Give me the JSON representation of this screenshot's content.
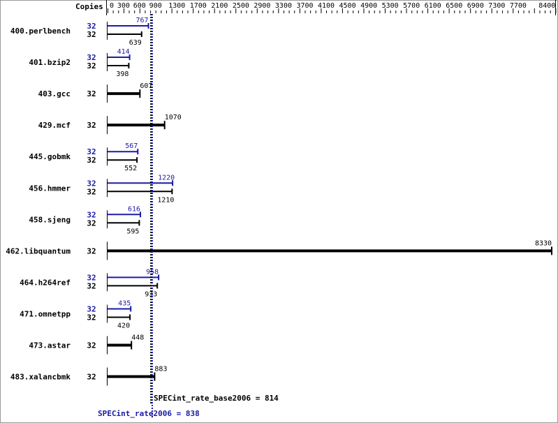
{
  "chart_data": {
    "type": "bar",
    "orientation": "horizontal",
    "copies_header": "Copies",
    "xlim": [
      0,
      8400
    ],
    "tick_labels": [
      0,
      300,
      600,
      900,
      1300,
      1700,
      2100,
      2500,
      2900,
      3300,
      3700,
      4100,
      4500,
      4900,
      5300,
      5700,
      6100,
      6500,
      6900,
      7300,
      7700,
      8400
    ],
    "colors": {
      "peak": "#1a1aa6",
      "base": "#000000"
    },
    "benchmarks": [
      {
        "name": "400.perlbench",
        "peak_copies": "32",
        "base_copies": "32",
        "peak": 767,
        "base": 639
      },
      {
        "name": "401.bzip2",
        "peak_copies": "32",
        "base_copies": "32",
        "peak": 414,
        "base": 398
      },
      {
        "name": "403.gcc",
        "base_copies": "32",
        "base": 607
      },
      {
        "name": "429.mcf",
        "base_copies": "32",
        "base": 1070
      },
      {
        "name": "445.gobmk",
        "peak_copies": "32",
        "base_copies": "32",
        "peak": 567,
        "base": 552
      },
      {
        "name": "456.hmmer",
        "peak_copies": "32",
        "base_copies": "32",
        "peak": 1220,
        "base": 1210
      },
      {
        "name": "458.sjeng",
        "peak_copies": "32",
        "base_copies": "32",
        "peak": 616,
        "base": 595
      },
      {
        "name": "462.libquantum",
        "base_copies": "32",
        "base": 8330
      },
      {
        "name": "464.h264ref",
        "peak_copies": "32",
        "base_copies": "32",
        "peak": 958,
        "base": 933
      },
      {
        "name": "471.omnetpp",
        "peak_copies": "32",
        "base_copies": "32",
        "peak": 435,
        "base": 420
      },
      {
        "name": "473.astar",
        "base_copies": "32",
        "base": 448
      },
      {
        "name": "483.xalancbmk",
        "base_copies": "32",
        "base": 883
      }
    ],
    "base_mean": {
      "label": "SPECint_rate_base2006 = 814",
      "value": 814
    },
    "peak_mean": {
      "label": "SPECint_rate2006 = 838",
      "value": 838
    }
  }
}
